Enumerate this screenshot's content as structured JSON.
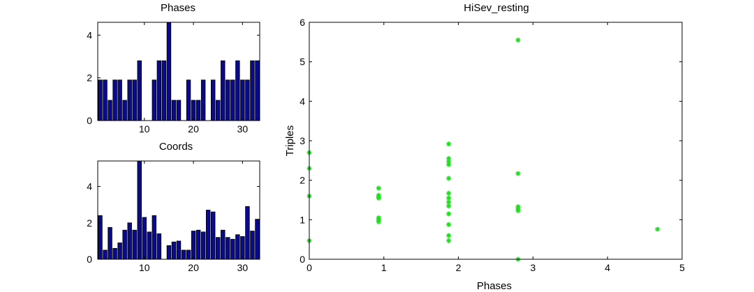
{
  "figure": {
    "background": "#ffffff"
  },
  "chart_data": [
    {
      "id": "phases",
      "type": "bar",
      "title": "Phases",
      "xlabel": "",
      "ylabel": "",
      "xlim": [
        0.5,
        33.5
      ],
      "ylim": [
        0,
        4.6
      ],
      "xticks": [
        10,
        20,
        30
      ],
      "yticks": [
        0,
        2,
        4
      ],
      "x": [
        1,
        2,
        3,
        4,
        5,
        6,
        7,
        8,
        9,
        10,
        11,
        12,
        13,
        14,
        15,
        16,
        17,
        18,
        19,
        20,
        21,
        22,
        23,
        24,
        25,
        26,
        27,
        28,
        29,
        30,
        31,
        32,
        33
      ],
      "values": [
        1.9,
        1.9,
        0.95,
        1.9,
        1.9,
        0.95,
        1.9,
        1.9,
        2.8,
        0,
        0,
        1.9,
        2.8,
        2.8,
        4.6,
        0.95,
        0.95,
        0,
        1.9,
        0.95,
        0.95,
        1.9,
        0,
        1.9,
        0.95,
        2.8,
        1.9,
        1.9,
        2.8,
        1.9,
        1.9,
        2.8,
        2.8
      ],
      "bar_color": "#0a0a8c",
      "grid": false
    },
    {
      "id": "coords",
      "type": "bar",
      "title": "Coords",
      "xlabel": "",
      "ylabel": "",
      "xlim": [
        0.5,
        33.5
      ],
      "ylim": [
        0,
        5.4
      ],
      "xticks": [
        10,
        20,
        30
      ],
      "yticks": [
        0,
        2,
        4
      ],
      "x": [
        1,
        2,
        3,
        4,
        5,
        6,
        7,
        8,
        9,
        10,
        11,
        12,
        13,
        14,
        15,
        16,
        17,
        18,
        19,
        20,
        21,
        22,
        23,
        24,
        25,
        26,
        27,
        28,
        29,
        30,
        31,
        32,
        33
      ],
      "values": [
        2.4,
        0.5,
        1.75,
        0.6,
        0.9,
        1.6,
        2.0,
        1.6,
        5.4,
        2.3,
        1.5,
        2.4,
        1.4,
        0,
        0.75,
        0.95,
        1.0,
        0.5,
        0.5,
        1.55,
        1.6,
        1.5,
        2.7,
        2.6,
        1.2,
        1.6,
        1.2,
        1.1,
        1.35,
        1.25,
        2.9,
        1.55,
        2.2
      ],
      "bar_color": "#0a0a8c",
      "grid": false
    },
    {
      "id": "hisev",
      "type": "scatter",
      "title": "HiSev_resting",
      "xlabel": "Phases",
      "ylabel": "Triples",
      "xlim": [
        0,
        5
      ],
      "ylim": [
        0,
        6
      ],
      "xticks": [
        0,
        1,
        2,
        3,
        4,
        5
      ],
      "yticks": [
        0,
        1,
        2,
        3,
        4,
        5,
        6
      ],
      "marker": "*",
      "marker_color": "#22dd22",
      "grid": false,
      "points": [
        [
          0,
          2.7
        ],
        [
          0,
          2.3
        ],
        [
          0,
          1.6
        ],
        [
          0,
          0.47
        ],
        [
          0.93,
          1.8
        ],
        [
          0.93,
          1.62
        ],
        [
          0.93,
          1.58
        ],
        [
          0.93,
          1.55
        ],
        [
          0.93,
          1.05
        ],
        [
          0.93,
          1.0
        ],
        [
          0.93,
          0.95
        ],
        [
          1.87,
          2.92
        ],
        [
          1.87,
          2.55
        ],
        [
          1.87,
          2.47
        ],
        [
          1.87,
          2.4
        ],
        [
          1.87,
          2.05
        ],
        [
          1.87,
          1.67
        ],
        [
          1.87,
          1.55
        ],
        [
          1.87,
          1.45
        ],
        [
          1.87,
          1.35
        ],
        [
          1.87,
          1.15
        ],
        [
          1.87,
          0.88
        ],
        [
          1.87,
          0.6
        ],
        [
          1.87,
          0.47
        ],
        [
          2.8,
          5.55
        ],
        [
          2.8,
          2.17
        ],
        [
          2.8,
          1.33
        ],
        [
          2.8,
          1.27
        ],
        [
          2.8,
          1.23
        ],
        [
          2.8,
          0.0
        ],
        [
          4.67,
          0.76
        ]
      ]
    }
  ]
}
